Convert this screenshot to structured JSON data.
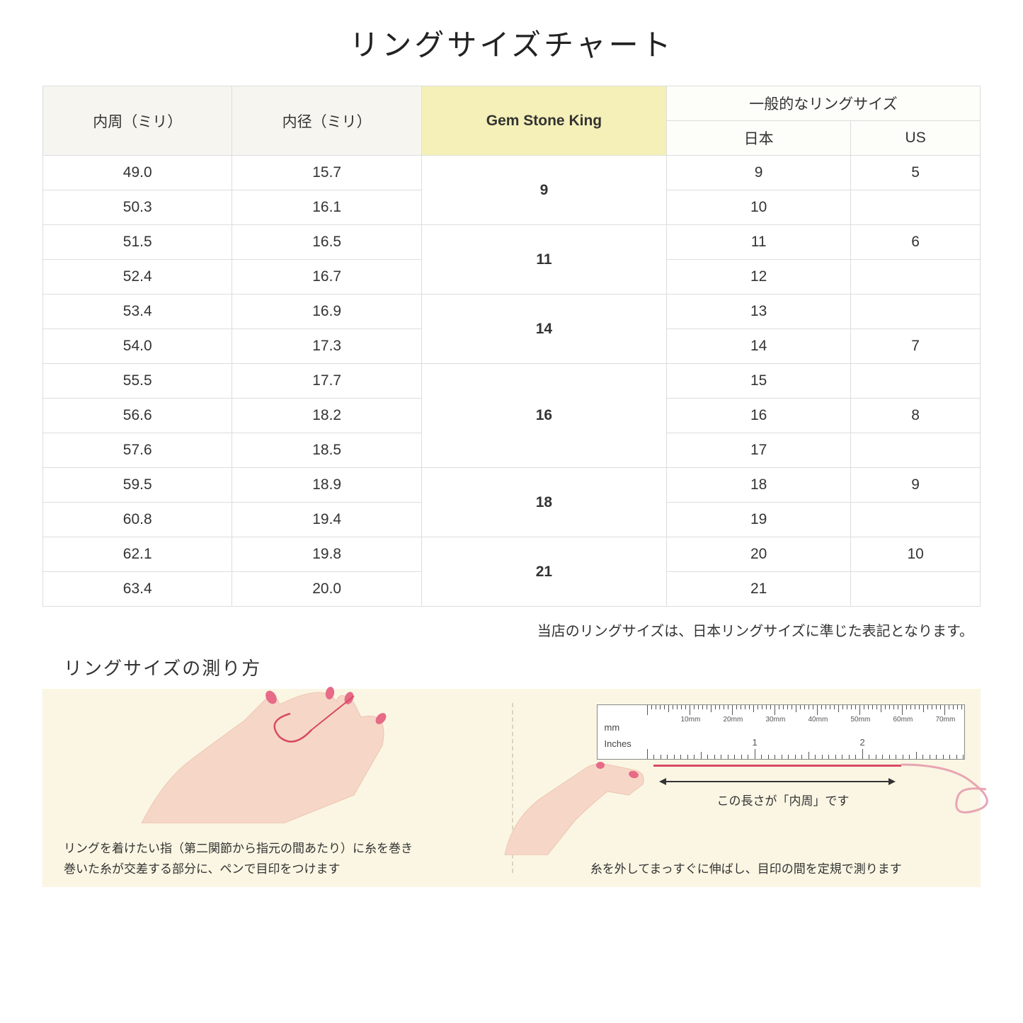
{
  "title": "リングサイズチャート",
  "headers": {
    "col1": "内周（ミリ）",
    "col2": "内径（ミリ）",
    "col3": "Gem Stone King",
    "col4_top": "一般的なリングサイズ",
    "col4_jp": "日本",
    "col4_us": "US"
  },
  "rows": [
    {
      "c": "49.0",
      "d": "15.7",
      "jp": "9",
      "us": "5"
    },
    {
      "c": "50.3",
      "d": "16.1",
      "jp": "10",
      "us": ""
    },
    {
      "c": "51.5",
      "d": "16.5",
      "jp": "11",
      "us": "6"
    },
    {
      "c": "52.4",
      "d": "16.7",
      "jp": "12",
      "us": ""
    },
    {
      "c": "53.4",
      "d": "16.9",
      "jp": "13",
      "us": ""
    },
    {
      "c": "54.0",
      "d": "17.3",
      "jp": "14",
      "us": "7"
    },
    {
      "c": "55.5",
      "d": "17.7",
      "jp": "15",
      "us": ""
    },
    {
      "c": "56.6",
      "d": "18.2",
      "jp": "16",
      "us": "8"
    },
    {
      "c": "57.6",
      "d": "18.5",
      "jp": "17",
      "us": ""
    },
    {
      "c": "59.5",
      "d": "18.9",
      "jp": "18",
      "us": "9"
    },
    {
      "c": "60.8",
      "d": "19.4",
      "jp": "19",
      "us": ""
    },
    {
      "c": "62.1",
      "d": "19.8",
      "jp": "20",
      "us": "10"
    },
    {
      "c": "63.4",
      "d": "20.0",
      "jp": "21",
      "us": ""
    }
  ],
  "gsk_spans": [
    {
      "start": 0,
      "span": 2,
      "val": "9"
    },
    {
      "start": 2,
      "span": 2,
      "val": "11"
    },
    {
      "start": 4,
      "span": 2,
      "val": "14"
    },
    {
      "start": 6,
      "span": 3,
      "val": "16"
    },
    {
      "start": 9,
      "span": 2,
      "val": "18"
    },
    {
      "start": 11,
      "span": 2,
      "val": "21"
    }
  ],
  "note": "当店のリングサイズは、日本リングサイズに準じた表記となります。",
  "howto": {
    "title": "リングサイズの測り方",
    "left_line1": "リングを着けたい指（第二関節から指元の間あたり）に糸を巻き",
    "left_line2": "巻いた糸が交差する部分に、ペンで目印をつけます",
    "right_dim": "この長さが「内周」です",
    "right_caption": "糸を外してまっすぐに伸ばし、目印の間を定規で測ります",
    "ruler_mm_unit": "mm",
    "ruler_in_unit": "Inches",
    "ruler_mm_labels": [
      "10mm",
      "20mm",
      "30mm",
      "40mm",
      "50mm",
      "60mm",
      "70mm"
    ],
    "ruler_in_labels": [
      "1",
      "2"
    ]
  },
  "colors": {
    "header_bg": "#f7f5f0",
    "gold_bg": "#f5f0b8",
    "sub_bg": "#fdfdf9",
    "howto_bg": "#faf6e3",
    "border": "#dddddd",
    "skin": "#f6d7c7",
    "skin_dark": "#eec4b0",
    "nail": "#e76a87",
    "thread": "#d84a63",
    "thread_light": "#e8a5b3"
  }
}
